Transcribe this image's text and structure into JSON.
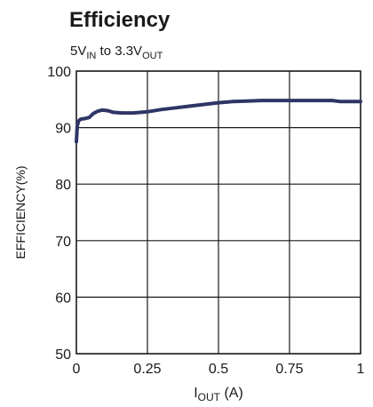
{
  "chart_data": {
    "type": "line",
    "title": "Efficiency",
    "subtitle": {
      "a": "5V",
      "b": "IN",
      "c": " to 3.3V",
      "d": "OUT"
    },
    "xlabel": {
      "main": "I",
      "sub": "OUT",
      "unit": " (A)"
    },
    "ylabel": "EFFICIENCY(%)",
    "xlim": [
      0,
      1
    ],
    "ylim": [
      50,
      100
    ],
    "xticks": [
      0,
      0.25,
      0.5,
      0.75,
      1
    ],
    "xtick_labels": [
      "0",
      "0.25",
      "0.5",
      "0.75",
      "1"
    ],
    "yticks": [
      50,
      60,
      70,
      80,
      90,
      100
    ],
    "ytick_labels": [
      "50",
      "60",
      "70",
      "80",
      "90",
      "100"
    ],
    "grid": true,
    "line_color": "#2e3566",
    "series": [
      {
        "x": [
          0,
          0.003,
          0.008,
          0.015,
          0.03,
          0.045,
          0.06,
          0.075,
          0.09,
          0.11,
          0.13,
          0.16,
          0.2,
          0.25,
          0.3,
          0.35,
          0.4,
          0.45,
          0.5,
          0.55,
          0.6,
          0.65,
          0.7,
          0.75,
          0.8,
          0.85,
          0.9,
          0.93,
          0.96,
          1.0
        ],
        "y": [
          87.5,
          90.3,
          91.2,
          91.5,
          91.6,
          91.8,
          92.5,
          92.9,
          93.1,
          93.0,
          92.7,
          92.6,
          92.6,
          92.8,
          93.2,
          93.5,
          93.8,
          94.1,
          94.4,
          94.6,
          94.7,
          94.8,
          94.8,
          94.8,
          94.8,
          94.8,
          94.8,
          94.6,
          94.6,
          94.6
        ]
      }
    ]
  }
}
